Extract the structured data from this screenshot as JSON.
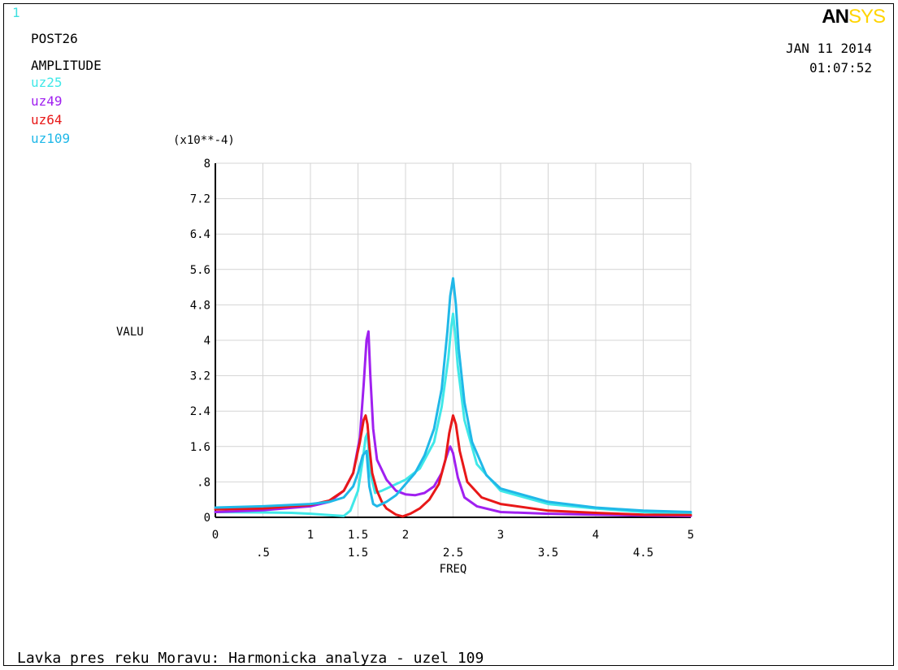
{
  "header": {
    "window_number": "1",
    "module": "POST26",
    "quantity": "AMPLITUDE",
    "date": "JAN 11 2014",
    "time": "01:07:52",
    "logo_bold": "AN",
    "logo_light": "SYS"
  },
  "legend": [
    {
      "label": "uz25",
      "color": "#40e8e8"
    },
    {
      "label": "uz49",
      "color": "#a020f0"
    },
    {
      "label": "uz64",
      "color": "#e81818"
    },
    {
      "label": "uz109",
      "color": "#20b8e8"
    }
  ],
  "footer": {
    "title": "Lavka pres reku Moravu: Harmonicka analyza - uzel 109"
  },
  "chart_data": {
    "type": "line",
    "xlabel": "FREQ",
    "ylabel": "VALU",
    "y_multiplier": "(x10**-4)",
    "xlim": [
      0,
      5
    ],
    "ylim": [
      0,
      8
    ],
    "x_ticks_upper": [
      "0",
      "1",
      "1.5",
      "2",
      "3",
      "4",
      "5"
    ],
    "x_ticks_upper_values": [
      0,
      1,
      1.5,
      2,
      3,
      4,
      5
    ],
    "x_ticks_lower": [
      ".5",
      "1.5",
      "2.5",
      "3.5",
      "4.5"
    ],
    "x_ticks_lower_values": [
      0.5,
      1.5,
      2.5,
      3.5,
      4.5
    ],
    "y_ticks": [
      "0",
      ".8",
      "1.6",
      "2.4",
      "3.2",
      "4",
      "4.8",
      "5.6",
      "6.4",
      "7.2",
      "8"
    ],
    "y_tick_values": [
      0,
      0.8,
      1.6,
      2.4,
      3.2,
      4,
      4.8,
      5.6,
      6.4,
      7.2,
      8
    ],
    "grid": true,
    "series": [
      {
        "name": "uz25",
        "color": "#40e8e8",
        "x": [
          0,
          0.5,
          0.8,
          1.0,
          1.2,
          1.35,
          1.42,
          1.5,
          1.55,
          1.58,
          1.6,
          1.63,
          1.68,
          1.75,
          1.85,
          2.0,
          2.15,
          2.3,
          2.38,
          2.45,
          2.48,
          2.5,
          2.52,
          2.55,
          2.62,
          2.75,
          3.0,
          3.5,
          4.0,
          4.5,
          5.0
        ],
        "y": [
          0.12,
          0.11,
          0.1,
          0.08,
          0.05,
          0.03,
          0.15,
          0.6,
          1.3,
          1.8,
          1.9,
          1.0,
          0.55,
          0.6,
          0.7,
          0.85,
          1.1,
          1.7,
          2.5,
          3.6,
          4.3,
          4.6,
          4.2,
          3.4,
          2.2,
          1.2,
          0.6,
          0.3,
          0.2,
          0.12,
          0.08
        ]
      },
      {
        "name": "uz49",
        "color": "#a020f0",
        "x": [
          0,
          0.5,
          1.0,
          1.2,
          1.35,
          1.45,
          1.52,
          1.56,
          1.59,
          1.61,
          1.63,
          1.66,
          1.7,
          1.8,
          1.9,
          2.0,
          2.1,
          2.2,
          2.3,
          2.38,
          2.42,
          2.45,
          2.47,
          2.5,
          2.55,
          2.62,
          2.75,
          3.0,
          3.5,
          4.0,
          4.5,
          5.0
        ],
        "y": [
          0.12,
          0.16,
          0.25,
          0.35,
          0.6,
          1.0,
          1.8,
          3.0,
          4.0,
          4.2,
          3.2,
          2.0,
          1.3,
          0.85,
          0.6,
          0.52,
          0.5,
          0.55,
          0.7,
          1.0,
          1.3,
          1.5,
          1.6,
          1.45,
          0.9,
          0.45,
          0.25,
          0.12,
          0.08,
          0.06,
          0.04,
          0.03
        ]
      },
      {
        "name": "uz64",
        "color": "#e81818",
        "x": [
          0,
          0.5,
          1.0,
          1.2,
          1.35,
          1.45,
          1.52,
          1.56,
          1.58,
          1.6,
          1.62,
          1.65,
          1.7,
          1.75,
          1.8,
          1.9,
          1.97,
          2.05,
          2.15,
          2.25,
          2.35,
          2.42,
          2.46,
          2.5,
          2.53,
          2.57,
          2.65,
          2.8,
          3.0,
          3.5,
          4.0,
          4.5,
          5.0
        ],
        "y": [
          0.18,
          0.2,
          0.28,
          0.38,
          0.6,
          1.0,
          1.7,
          2.2,
          2.3,
          2.1,
          1.6,
          1.0,
          0.6,
          0.35,
          0.2,
          0.06,
          0.02,
          0.08,
          0.2,
          0.4,
          0.75,
          1.3,
          1.9,
          2.3,
          2.1,
          1.5,
          0.8,
          0.45,
          0.3,
          0.15,
          0.1,
          0.06,
          0.05
        ]
      },
      {
        "name": "uz109",
        "color": "#20b8e8",
        "x": [
          0,
          0.5,
          1.0,
          1.2,
          1.35,
          1.45,
          1.5,
          1.55,
          1.59,
          1.62,
          1.66,
          1.7,
          1.8,
          1.9,
          2.0,
          2.1,
          2.2,
          2.3,
          2.38,
          2.44,
          2.47,
          2.5,
          2.53,
          2.56,
          2.62,
          2.7,
          2.85,
          3.0,
          3.5,
          4.0,
          4.5,
          5.0
        ],
        "y": [
          0.22,
          0.25,
          0.3,
          0.35,
          0.45,
          0.7,
          1.0,
          1.4,
          1.5,
          0.7,
          0.3,
          0.25,
          0.35,
          0.5,
          0.75,
          1.0,
          1.4,
          2.0,
          2.9,
          4.2,
          5.0,
          5.4,
          4.8,
          3.8,
          2.6,
          1.7,
          0.95,
          0.65,
          0.35,
          0.22,
          0.15,
          0.12
        ]
      }
    ]
  }
}
